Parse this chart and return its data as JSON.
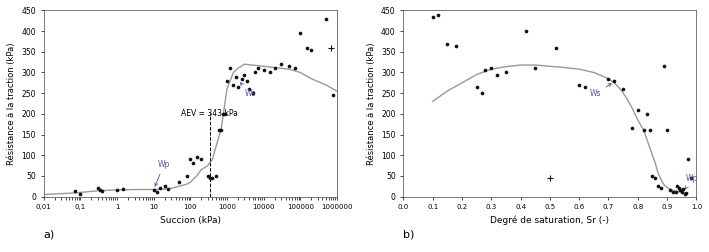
{
  "fig_width": 7.09,
  "fig_height": 2.52,
  "dpi": 100,
  "plot_a": {
    "xlabel": "Succion (kPa)",
    "ylabel": "Résistance à la traction (kPa)",
    "label": "a)",
    "ylim": [
      0,
      450
    ],
    "yticks": [
      0,
      50,
      100,
      150,
      200,
      250,
      300,
      350,
      400,
      450
    ],
    "xlim_log": [
      0.01,
      1000000
    ],
    "xtick_labels": [
      "0,01",
      "0,1",
      "1",
      "10",
      "100",
      "1000",
      "10000",
      "100000",
      "1000000"
    ],
    "xtick_values": [
      0.01,
      0.1,
      1,
      10,
      100,
      1000,
      10000,
      100000,
      1000000
    ],
    "annotation_aev": "AEV = 343 kPa",
    "aev_line_x": 343,
    "aev_line_ymax": 0.45,
    "annotation_wp": "Wp",
    "annotation_ws": "Ws",
    "scatter_dots": [
      [
        0.07,
        13
      ],
      [
        0.1,
        5
      ],
      [
        0.3,
        20
      ],
      [
        0.35,
        17
      ],
      [
        0.4,
        14
      ],
      [
        1.0,
        15
      ],
      [
        1.5,
        18
      ],
      [
        10,
        15
      ],
      [
        12,
        10
      ],
      [
        15,
        20
      ],
      [
        20,
        25
      ],
      [
        25,
        18
      ],
      [
        50,
        35
      ],
      [
        80,
        50
      ],
      [
        100,
        90
      ],
      [
        120,
        80
      ],
      [
        150,
        95
      ],
      [
        200,
        90
      ],
      [
        300,
        50
      ],
      [
        350,
        45
      ],
      [
        400,
        45
      ],
      [
        500,
        50
      ],
      [
        600,
        160
      ],
      [
        700,
        160
      ],
      [
        800,
        200
      ],
      [
        900,
        200
      ],
      [
        1000,
        280
      ],
      [
        1200,
        310
      ],
      [
        1500,
        270
      ],
      [
        1800,
        290
      ],
      [
        2000,
        265
      ],
      [
        2500,
        285
      ],
      [
        3000,
        295
      ],
      [
        3500,
        280
      ],
      [
        4000,
        260
      ],
      [
        5000,
        250
      ],
      [
        6000,
        300
      ],
      [
        7000,
        310
      ],
      [
        10000,
        305
      ],
      [
        15000,
        300
      ],
      [
        20000,
        310
      ],
      [
        30000,
        320
      ],
      [
        50000,
        315
      ],
      [
        70000,
        310
      ],
      [
        100000,
        395
      ],
      [
        150000,
        360
      ],
      [
        200000,
        355
      ],
      [
        500000,
        430
      ],
      [
        800000,
        245
      ]
    ],
    "scatter_plus": [
      [
        700000,
        360
      ]
    ],
    "curve_data": [
      [
        0.01,
        5
      ],
      [
        0.05,
        8
      ],
      [
        0.1,
        10
      ],
      [
        0.3,
        14
      ],
      [
        0.5,
        15
      ],
      [
        1,
        16
      ],
      [
        3,
        17
      ],
      [
        5,
        17
      ],
      [
        10,
        17
      ],
      [
        20,
        18
      ],
      [
        30,
        20
      ],
      [
        50,
        25
      ],
      [
        80,
        30
      ],
      [
        100,
        35
      ],
      [
        150,
        50
      ],
      [
        200,
        65
      ],
      [
        300,
        75
      ],
      [
        400,
        90
      ],
      [
        500,
        120
      ],
      [
        700,
        165
      ],
      [
        1000,
        260
      ],
      [
        1500,
        300
      ],
      [
        2000,
        310
      ],
      [
        3000,
        320
      ],
      [
        5000,
        318
      ],
      [
        10000,
        315
      ],
      [
        20000,
        312
      ],
      [
        50000,
        308
      ],
      [
        100000,
        300
      ],
      [
        200000,
        285
      ],
      [
        500000,
        270
      ],
      [
        1000000,
        255
      ]
    ]
  },
  "plot_b": {
    "xlabel": "Degré de saturation, Sr (-)",
    "ylabel": "Résistance à la traction (kPa)",
    "label": "b)",
    "ylim": [
      0,
      450
    ],
    "yticks": [
      0,
      50,
      100,
      150,
      200,
      250,
      300,
      350,
      400,
      450
    ],
    "xlim": [
      0.0,
      1.0
    ],
    "xticks": [
      0.0,
      0.1,
      0.2,
      0.3,
      0.4,
      0.5,
      0.6,
      0.7,
      0.8,
      0.9,
      1.0
    ],
    "annotation_ws": "Ws",
    "annotation_wp": "Wp",
    "scatter_dots": [
      [
        0.1,
        435
      ],
      [
        0.12,
        440
      ],
      [
        0.15,
        370
      ],
      [
        0.18,
        365
      ],
      [
        0.25,
        265
      ],
      [
        0.27,
        250
      ],
      [
        0.28,
        305
      ],
      [
        0.3,
        310
      ],
      [
        0.32,
        295
      ],
      [
        0.35,
        300
      ],
      [
        0.42,
        400
      ],
      [
        0.45,
        310
      ],
      [
        0.52,
        360
      ],
      [
        0.6,
        270
      ],
      [
        0.62,
        265
      ],
      [
        0.7,
        285
      ],
      [
        0.72,
        280
      ],
      [
        0.75,
        260
      ],
      [
        0.78,
        165
      ],
      [
        0.8,
        210
      ],
      [
        0.82,
        160
      ],
      [
        0.83,
        200
      ],
      [
        0.84,
        160
      ],
      [
        0.85,
        50
      ],
      [
        0.86,
        45
      ],
      [
        0.87,
        25
      ],
      [
        0.88,
        20
      ],
      [
        0.89,
        315
      ],
      [
        0.9,
        160
      ],
      [
        0.91,
        15
      ],
      [
        0.92,
        10
      ],
      [
        0.93,
        12
      ],
      [
        0.935,
        25
      ],
      [
        0.94,
        20
      ],
      [
        0.945,
        15
      ],
      [
        0.95,
        10
      ],
      [
        0.955,
        18
      ],
      [
        0.96,
        5
      ],
      [
        0.965,
        8
      ],
      [
        0.97,
        90
      ],
      [
        0.98,
        45
      ]
    ],
    "scatter_plus": [
      [
        0.5,
        45
      ]
    ],
    "curve_data": [
      [
        0.1,
        230
      ],
      [
        0.15,
        255
      ],
      [
        0.2,
        275
      ],
      [
        0.25,
        295
      ],
      [
        0.3,
        308
      ],
      [
        0.35,
        314
      ],
      [
        0.4,
        318
      ],
      [
        0.45,
        318
      ],
      [
        0.5,
        315
      ],
      [
        0.55,
        312
      ],
      [
        0.6,
        308
      ],
      [
        0.65,
        300
      ],
      [
        0.7,
        285
      ],
      [
        0.72,
        275
      ],
      [
        0.74,
        260
      ],
      [
        0.76,
        240
      ],
      [
        0.78,
        215
      ],
      [
        0.8,
        185
      ],
      [
        0.82,
        160
      ],
      [
        0.84,
        120
      ],
      [
        0.86,
        80
      ],
      [
        0.87,
        55
      ],
      [
        0.88,
        40
      ],
      [
        0.89,
        28
      ],
      [
        0.9,
        22
      ],
      [
        0.91,
        18
      ],
      [
        0.92,
        15
      ],
      [
        0.93,
        13
      ],
      [
        0.94,
        12
      ],
      [
        0.95,
        11
      ]
    ]
  },
  "scatter_color": "#111111",
  "curve_color": "#999999",
  "curve_lw": 1.0,
  "scatter_s": 7,
  "scatter_plus_s": 25,
  "annotation_color": "#5555aa",
  "bg_color": "#ffffff"
}
